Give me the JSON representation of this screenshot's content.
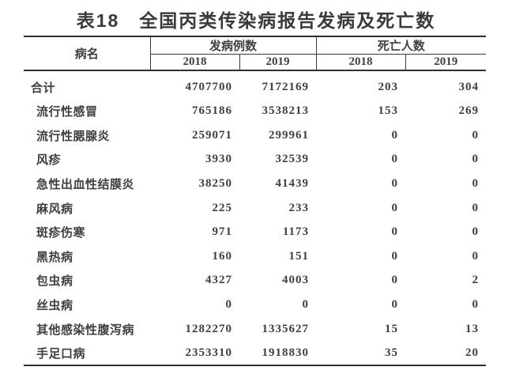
{
  "title": "表18　全国丙类传染病报告发病及死亡数",
  "colors": {
    "text": "#3f3f42",
    "title_text": "#3a3a3a",
    "border": "#2f2f2f",
    "background": "#ffffff"
  },
  "table": {
    "columns": {
      "disease": "病名",
      "cases": {
        "label": "发病例数",
        "years": [
          "2018",
          "2019"
        ]
      },
      "deaths": {
        "label": "死亡人数",
        "years": [
          "2018",
          "2019"
        ]
      }
    },
    "rows": [
      {
        "name": "合计",
        "c2018": "4707700",
        "c2019": "7172169",
        "d2018": "203",
        "d2019": "304"
      },
      {
        "name": "流行性感冒",
        "c2018": "765186",
        "c2019": "3538213",
        "d2018": "153",
        "d2019": "269"
      },
      {
        "name": "流行性腮腺炎",
        "c2018": "259071",
        "c2019": "299961",
        "d2018": "0",
        "d2019": "0"
      },
      {
        "name": "风疹",
        "c2018": "3930",
        "c2019": "32539",
        "d2018": "0",
        "d2019": "0"
      },
      {
        "name": "急性出血性结膜炎",
        "c2018": "38250",
        "c2019": "41439",
        "d2018": "0",
        "d2019": "0"
      },
      {
        "name": "麻风病",
        "c2018": "225",
        "c2019": "233",
        "d2018": "0",
        "d2019": "0"
      },
      {
        "name": "斑疹伤寒",
        "c2018": "971",
        "c2019": "1173",
        "d2018": "0",
        "d2019": "0"
      },
      {
        "name": "黑热病",
        "c2018": "160",
        "c2019": "151",
        "d2018": "0",
        "d2019": "0"
      },
      {
        "name": "包虫病",
        "c2018": "4327",
        "c2019": "4003",
        "d2018": "0",
        "d2019": "2"
      },
      {
        "name": "丝虫病",
        "c2018": "0",
        "c2019": "0",
        "d2018": "0",
        "d2019": "0"
      },
      {
        "name": "其他感染性腹泻病",
        "c2018": "1282270",
        "c2019": "1335627",
        "d2018": "15",
        "d2019": "13"
      },
      {
        "name": "手足口病",
        "c2018": "2353310",
        "c2019": "1918830",
        "d2018": "35",
        "d2019": "20"
      }
    ]
  }
}
